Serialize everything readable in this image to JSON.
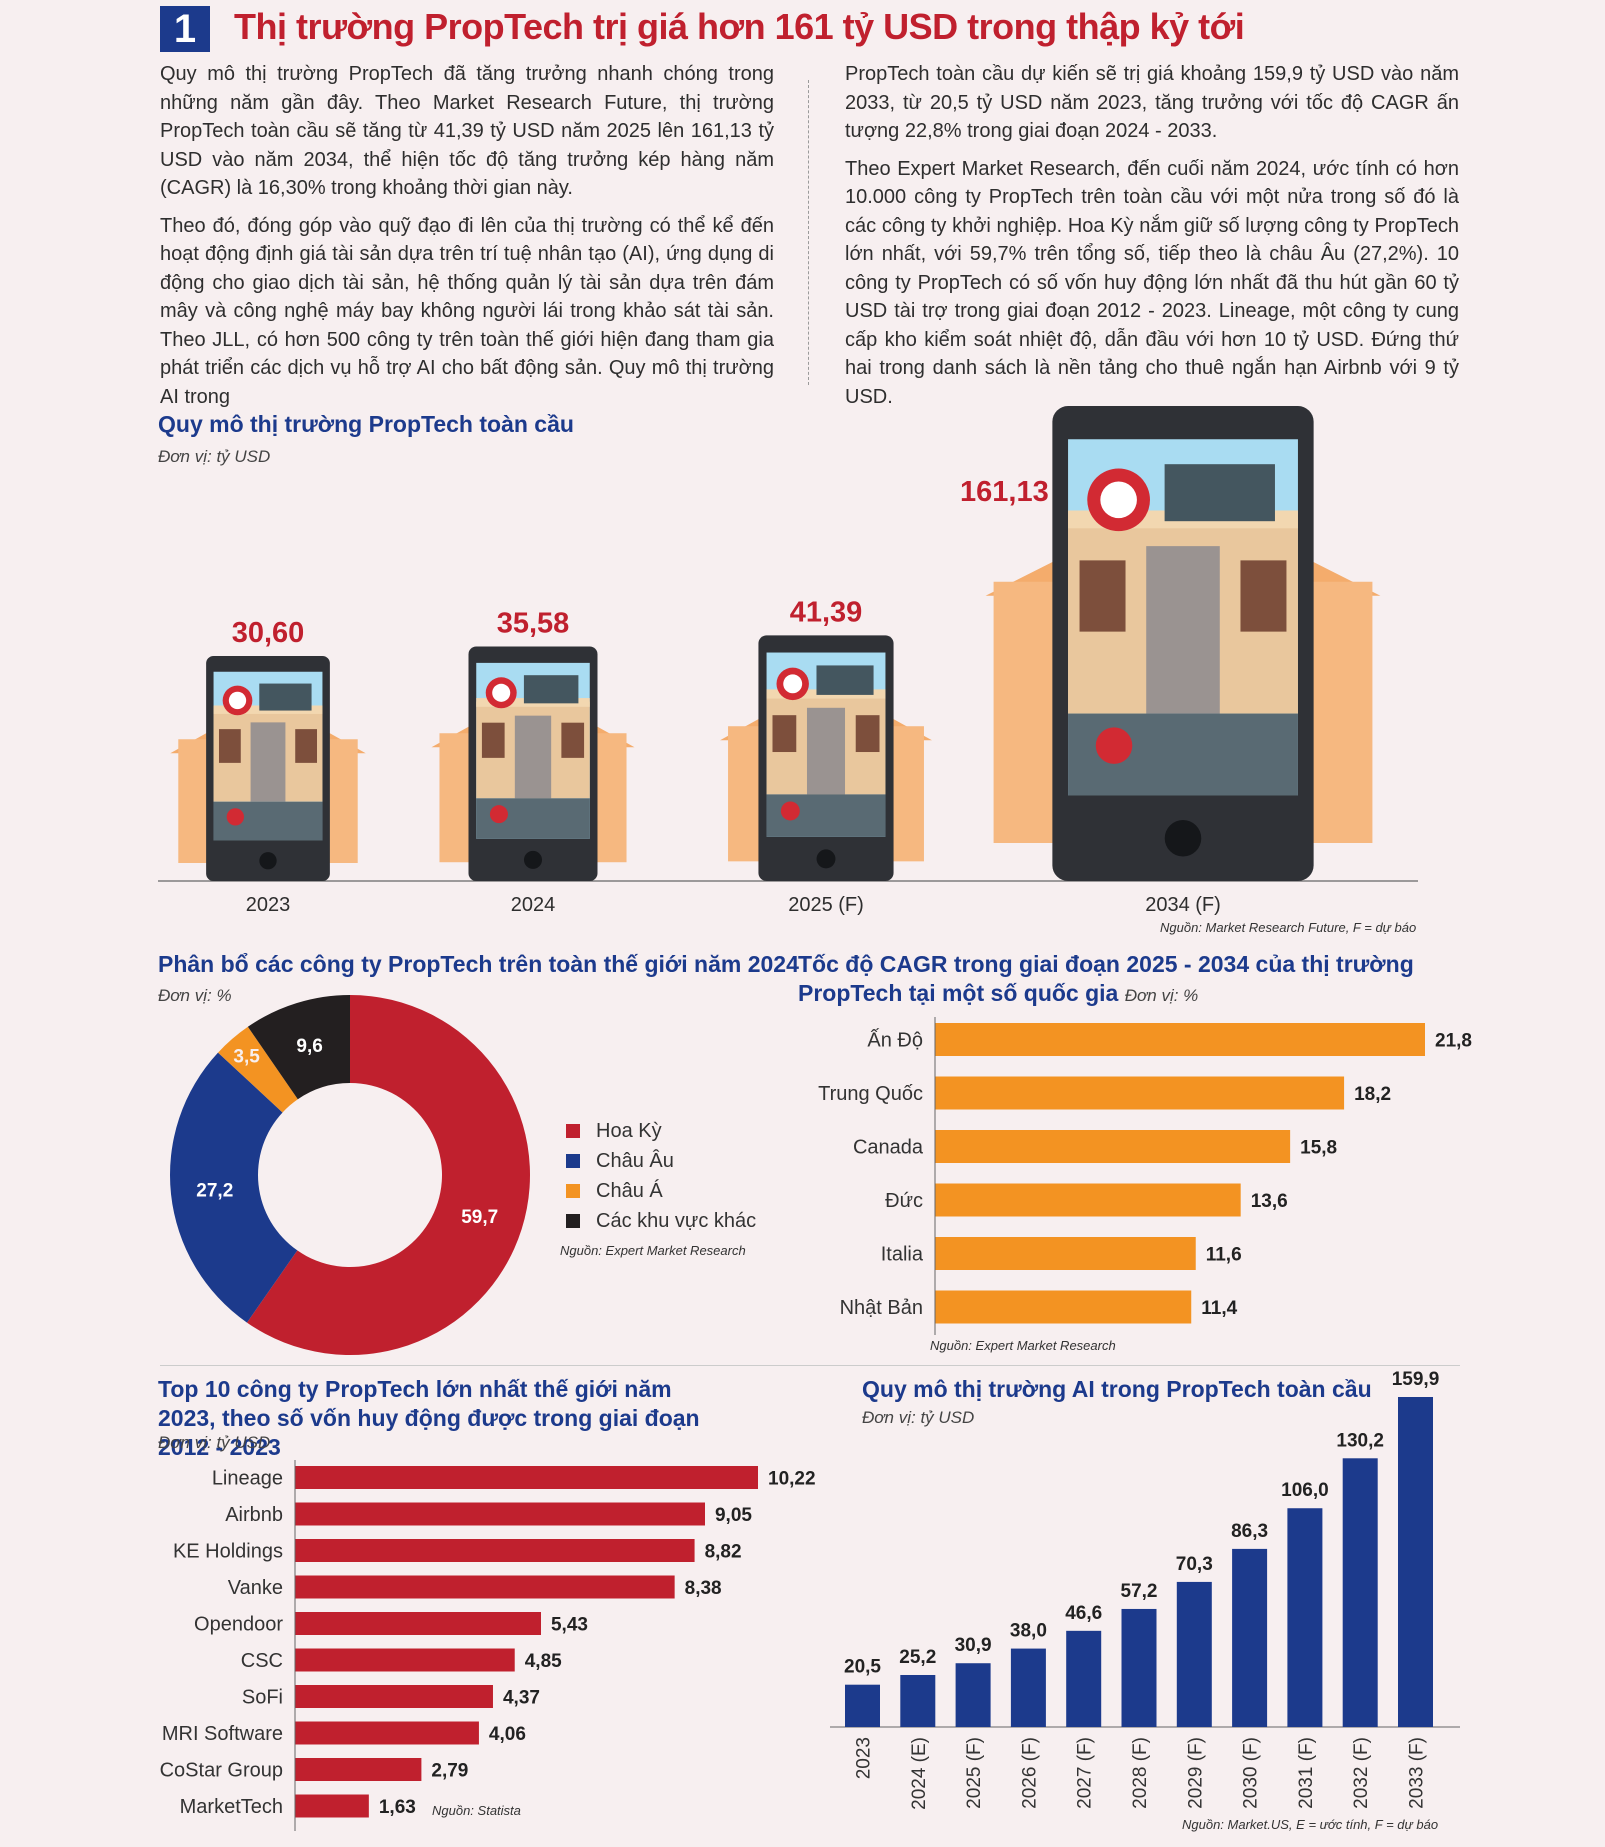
{
  "header": {
    "number": "1",
    "title": "Thị trường PropTech  trị giá hơn 161 tỷ USD trong thập kỷ tới"
  },
  "article": {
    "left": [
      "Quy mô thị trường PropTech đã tăng trưởng nhanh chóng trong những năm gần đây. Theo Market Research Future, thị trường PropTech toàn cầu sẽ tăng từ 41,39 tỷ USD năm 2025 lên 161,13 tỷ USD vào năm 2034, thể hiện tốc độ tăng trưởng kép hàng năm (CAGR) là 16,30% trong khoảng thời gian này.",
      "Theo đó, đóng góp vào quỹ đạo đi lên của thị trường có thể kể đến hoạt động định giá tài sản dựa trên trí tuệ nhân tạo (AI), ứng dụng di động cho giao dịch tài sản, hệ thống quản lý tài sản dựa trên đám mây và công nghệ máy bay không người lái trong khảo sát tài sản. Theo JLL, có hơn 500 công ty trên toàn thế giới hiện đang tham gia phát triển các dịch vụ hỗ trợ AI cho bất động sản. Quy mô thị trường AI trong"
    ],
    "right": [
      "PropTech toàn cầu dự kiến sẽ trị giá khoảng 159,9 tỷ USD vào năm 2033, từ 20,5 tỷ USD năm 2023, tăng trưởng với tốc độ CAGR ấn tượng 22,8% trong giai đoạn 2024 - 2033.",
      "Theo Expert Market Research, đến cuối năm 2024, ước tính có hơn 10.000 công ty PropTech trên toàn cầu với một nửa trong số đó là các công ty khởi nghiệp. Hoa Kỳ nắm giữ số lượng công ty PropTech lớn nhất, với 59,7% trên tổng số, tiếp theo là châu Âu (27,2%). 10 công ty PropTech có số vốn huy động lớn nhất đã thu hút gần 60 tỷ USD tài trợ trong giai đoạn 2012 - 2023. Lineage, một công ty cung cấp kho kiểm soát nhiệt độ, dẫn đầu với hơn 10 tỷ USD. Đứng thứ hai trong danh sách là nền tảng cho thuê ngắn hạn Airbnb với 9 tỷ USD."
    ]
  },
  "colors": {
    "red": "#c0202e",
    "blue": "#1c3a8c",
    "orange": "#f39322",
    "black": "#231f20",
    "house": "#f6b880",
    "phone": "#2f3136"
  },
  "chart_data": [
    {
      "id": "market_size",
      "type": "bar",
      "title": "Quy mô thị trường PropTech toàn cầu",
      "unit": "Đơn vị: tỷ USD",
      "categories": [
        "2023",
        "2024",
        "2025 (F)",
        "2034 (F)"
      ],
      "values": [
        30.6,
        35.58,
        41.39,
        161.13
      ],
      "value_labels": [
        "30,60",
        "35,58",
        "41,39",
        "161,13"
      ],
      "icon": "phone-house-icon",
      "source": "Nguồn: Market Research Future, F = dự báo"
    },
    {
      "id": "allocation",
      "type": "pie",
      "title": "Phân bổ các công ty PropTech trên toàn thế giới năm 2024",
      "unit": "Đơn vị: %",
      "labels": [
        "Hoa Kỳ",
        "Châu Âu",
        "Châu Á",
        "Các khu vực khác"
      ],
      "values": [
        59.7,
        27.2,
        3.5,
        9.6
      ],
      "value_labels": [
        "59,7",
        "27,2",
        "3,5",
        "9,6"
      ],
      "colors": [
        "#c0202e",
        "#1c3a8c",
        "#f39322",
        "#231f20"
      ],
      "source": "Nguồn: Expert Market Research"
    },
    {
      "id": "cagr",
      "type": "bar",
      "orientation": "horizontal",
      "title": "Tốc độ CAGR trong giai đoạn 2025 - 2034 của thị trường PropTech tại một số quốc gia",
      "unit": "Đơn vị: %",
      "categories": [
        "Ấn Độ",
        "Trung Quốc",
        "Canada",
        "Đức",
        "Italia",
        "Nhật Bản"
      ],
      "values": [
        21.8,
        18.2,
        15.8,
        13.6,
        11.6,
        11.4
      ],
      "value_labels": [
        "21,8",
        "18,2",
        "15,8",
        "13,6",
        "11,6",
        "11,4"
      ],
      "color": "#f39322",
      "source": "Nguồn: Expert Market Research"
    },
    {
      "id": "top10",
      "type": "bar",
      "orientation": "horizontal",
      "title": "Top 10 công ty PropTech lớn nhất thế giới năm 2023, theo số vốn huy động được trong giai đoạn 2012 - 2023",
      "unit": "Đơn vị: tỷ USD",
      "categories": [
        "Lineage",
        "Airbnb",
        "KE Holdings",
        "Vanke",
        "Opendoor",
        "CSC",
        "SoFi",
        "MRI Software",
        "CoStar Group",
        "MarketTech"
      ],
      "values": [
        10.22,
        9.05,
        8.82,
        8.38,
        5.43,
        4.85,
        4.37,
        4.06,
        2.79,
        1.63
      ],
      "value_labels": [
        "10,22",
        "9,05",
        "8,82",
        "8,38",
        "5,43",
        "4,85",
        "4,37",
        "4,06",
        "2,79",
        "1,63"
      ],
      "color": "#c0202e",
      "source": "Nguồn: Statista"
    },
    {
      "id": "ai_market",
      "type": "bar",
      "title": "Quy mô thị trường AI trong PropTech toàn cầu",
      "unit": "Đơn vị: tỷ USD",
      "categories": [
        "2023",
        "2024 (E)",
        "2025 (F)",
        "2026 (F)",
        "2027 (F)",
        "2028 (F)",
        "2029 (F)",
        "2030 (F)",
        "2031 (F)",
        "2032 (F)",
        "2033 (F)"
      ],
      "values": [
        20.5,
        25.2,
        30.9,
        38.0,
        46.6,
        57.2,
        70.3,
        86.3,
        106.0,
        130.2,
        159.9
      ],
      "value_labels": [
        "20,5",
        "25,2",
        "30,9",
        "38,0",
        "46,6",
        "57,2",
        "70,3",
        "86,3",
        "106,0",
        "130,2",
        "159,9"
      ],
      "color": "#1c3a8c",
      "source": "Nguồn: Market.US, E = ước tính, F = dự báo"
    }
  ]
}
